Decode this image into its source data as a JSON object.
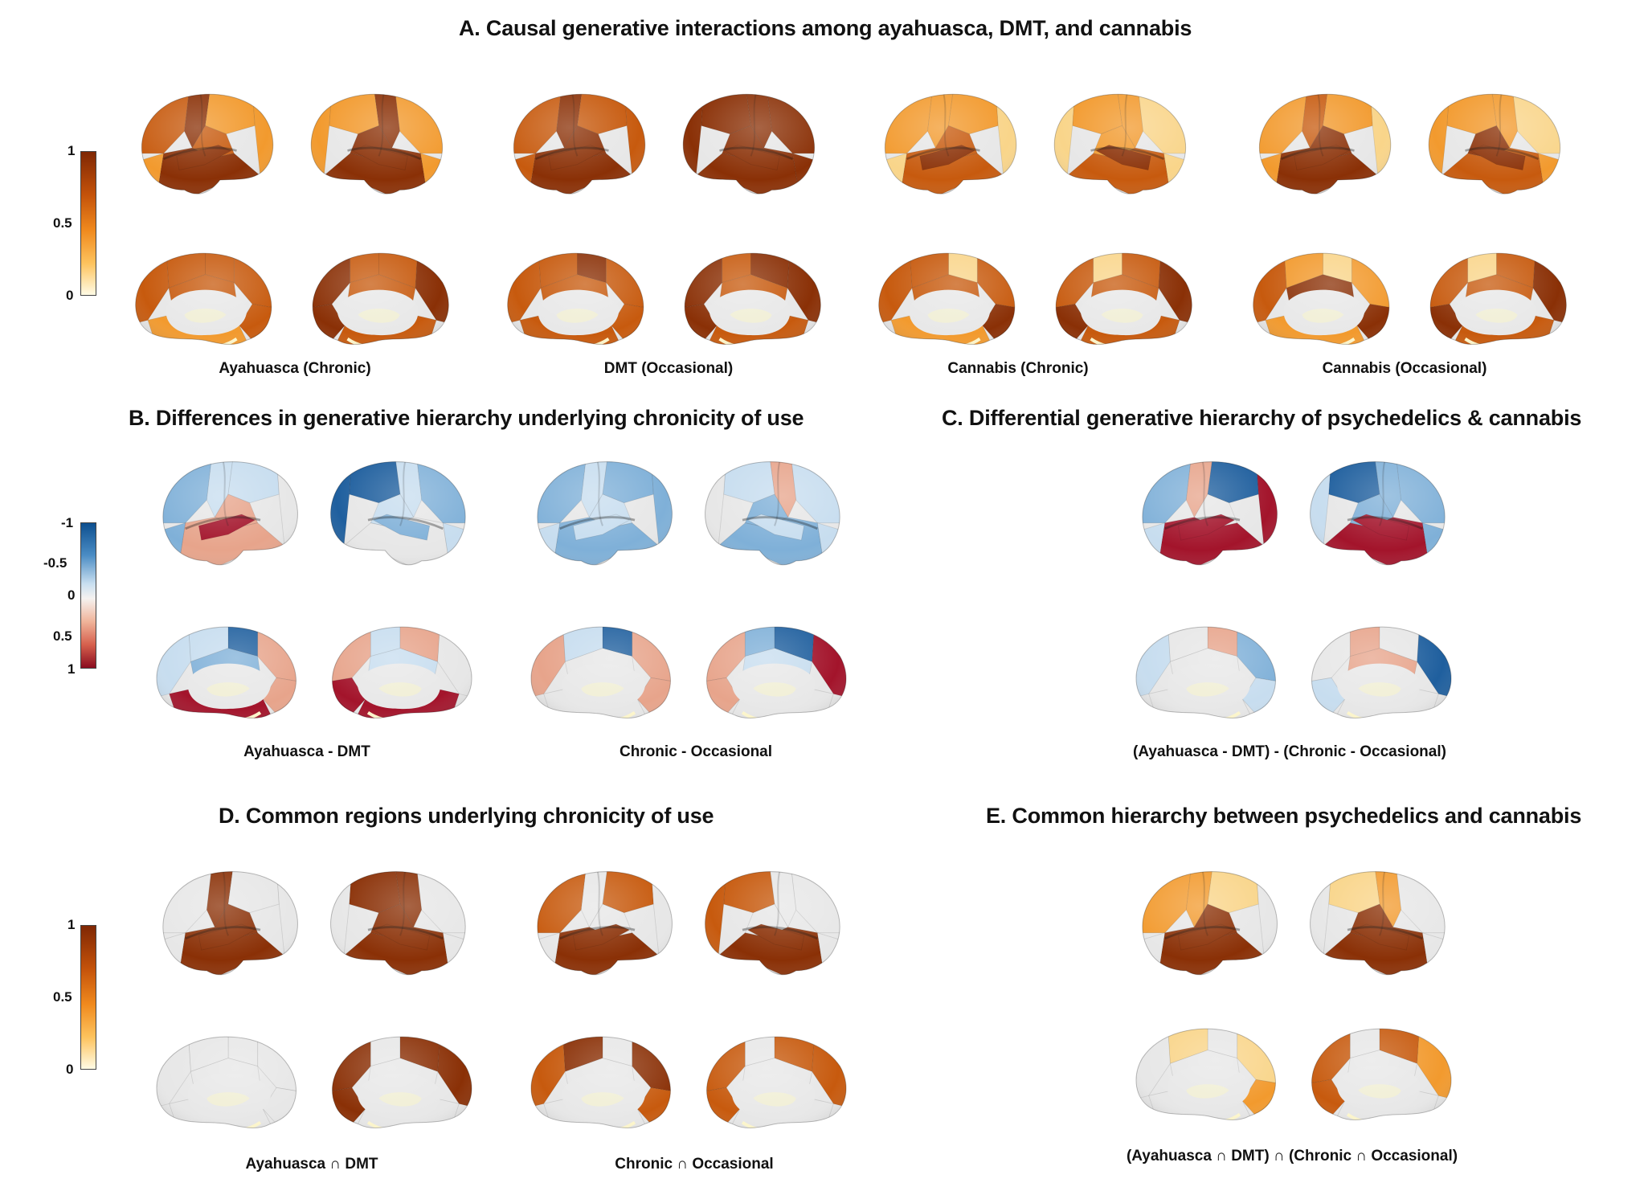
{
  "panels": {
    "A": {
      "title": "A. Causal generative interactions among ayahuasca, DMT, and cannabis",
      "captions": [
        "Ayahuasca (Chronic)",
        "DMT (Occasional)",
        "Cannabis (Chronic)",
        "Cannabis (Occasional)"
      ]
    },
    "B": {
      "title": "B. Differences in generative hierarchy underlying chronicity of use",
      "captions": [
        "Ayahuasca - DMT",
        "Chronic - Occasional"
      ]
    },
    "C": {
      "title": "C. Differential generative hierarchy of psychedelics & cannabis",
      "captions": [
        "(Ayahuasca - DMT) - (Chronic - Occasional)"
      ]
    },
    "D": {
      "title": "D. Common regions underlying chronicity of use",
      "captions": [
        "Ayahuasca ∩ DMT",
        "Chronic ∩ Occasional"
      ]
    },
    "E": {
      "title": "E. Common hierarchy between psychedelics and cannabis",
      "captions": [
        "(Ayahuasca ∩ DMT) ∩ (Chronic ∩ Occasional)"
      ]
    }
  },
  "colorbars": {
    "sequential_top": {
      "ticks": [
        "1",
        "0.5",
        "0"
      ],
      "colors": [
        "#7f2704",
        "#d25a0a",
        "#fdae3b",
        "#fffbe5"
      ]
    },
    "diverging": {
      "ticks": [
        "-1",
        "-0.5",
        "0",
        "0.5",
        "1"
      ],
      "colors": [
        "#0d4f8f",
        "#6baed6",
        "#f2f2f2",
        "#ef8a62",
        "#a50f25"
      ]
    },
    "sequential_bottom": {
      "ticks": [
        "1",
        "0.5",
        "0"
      ],
      "colors": [
        "#7f2704",
        "#d25a0a",
        "#fdae3b",
        "#fffbe5"
      ]
    }
  },
  "palette": {
    "base_gray": "#e7e7e7",
    "dark_orange": "#8a3006",
    "mid_orange": "#c75a0e",
    "light_orange": "#f29a2e",
    "pale_yellow": "#f9d58a",
    "blue_dark": "#1f5f9e",
    "blue_mid": "#7fb0d8",
    "blue_light": "#c7ddef",
    "red_dark": "#a3142b",
    "red_light": "#e7a48b"
  }
}
